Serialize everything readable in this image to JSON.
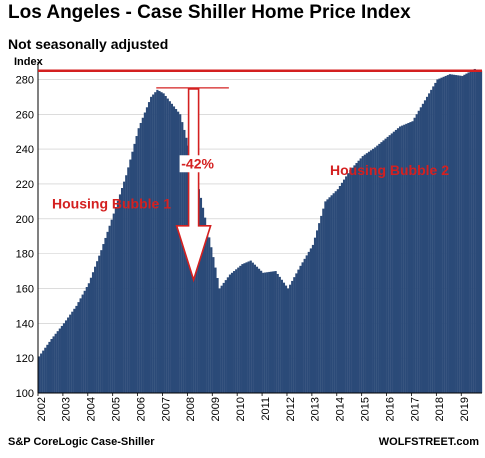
{
  "header": {
    "title": "Los Angeles - Case Shiller Home Price Index",
    "subtitle": "Not seasonally adjusted",
    "ylabel": "Index"
  },
  "footer": {
    "source": "S&P CoreLogic Case-Shiller",
    "credit": "WOLFSTREET.com"
  },
  "colors": {
    "bar": "#2b4a78",
    "accent": "#d42020",
    "grid": "#c8c8c8"
  },
  "chart_data": {
    "type": "bar",
    "ylabel": "Index",
    "ylim": [
      100,
      290
    ],
    "yticks": [
      100,
      120,
      140,
      160,
      180,
      200,
      220,
      240,
      260,
      280
    ],
    "xtick_labels": [
      "2002",
      "2003",
      "2004",
      "2005",
      "2006",
      "2007",
      "2008",
      "2009",
      "2010",
      "2011",
      "2012",
      "2013",
      "2014",
      "2015",
      "2016",
      "2017",
      "2018",
      "2019"
    ],
    "start_year": 2002,
    "frequency": "monthly",
    "grid": true,
    "reference_line": 285,
    "annotations": [
      {
        "text": "Housing Bubble 1"
      },
      {
        "text": "-42%"
      },
      {
        "text": "Housing Bubble 2"
      }
    ],
    "anchors": [
      {
        "month": 0,
        "value": 121
      },
      {
        "month": 6,
        "value": 131
      },
      {
        "month": 12,
        "value": 140
      },
      {
        "month": 18,
        "value": 150
      },
      {
        "month": 24,
        "value": 163
      },
      {
        "month": 30,
        "value": 182
      },
      {
        "month": 36,
        "value": 203
      },
      {
        "month": 42,
        "value": 225
      },
      {
        "month": 48,
        "value": 252
      },
      {
        "month": 54,
        "value": 270
      },
      {
        "month": 57,
        "value": 274
      },
      {
        "month": 60,
        "value": 272
      },
      {
        "month": 64,
        "value": 266
      },
      {
        "month": 68,
        "value": 260
      },
      {
        "month": 72,
        "value": 242
      },
      {
        "month": 78,
        "value": 212
      },
      {
        "month": 84,
        "value": 178
      },
      {
        "month": 87,
        "value": 160
      },
      {
        "month": 92,
        "value": 168
      },
      {
        "month": 98,
        "value": 174
      },
      {
        "month": 102,
        "value": 176
      },
      {
        "month": 108,
        "value": 169
      },
      {
        "month": 114,
        "value": 170
      },
      {
        "month": 120,
        "value": 160
      },
      {
        "month": 126,
        "value": 173
      },
      {
        "month": 132,
        "value": 185
      },
      {
        "month": 138,
        "value": 210
      },
      {
        "month": 144,
        "value": 217
      },
      {
        "month": 150,
        "value": 228
      },
      {
        "month": 156,
        "value": 236
      },
      {
        "month": 162,
        "value": 241
      },
      {
        "month": 168,
        "value": 247
      },
      {
        "month": 174,
        "value": 253
      },
      {
        "month": 180,
        "value": 256
      },
      {
        "month": 186,
        "value": 268
      },
      {
        "month": 192,
        "value": 280
      },
      {
        "month": 198,
        "value": 283
      },
      {
        "month": 204,
        "value": 282
      },
      {
        "month": 210,
        "value": 286
      },
      {
        "month": 213,
        "value": 285
      }
    ]
  }
}
